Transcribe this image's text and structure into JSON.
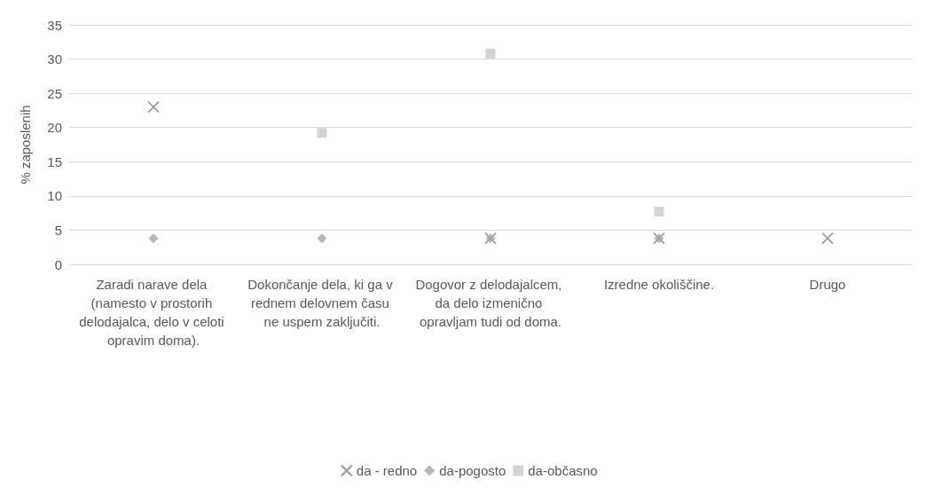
{
  "chart_data": {
    "type": "scatter",
    "ylabel": "% zaposlenih",
    "categories": [
      "Zaradi narave dela (namesto v prostorih delodajalca, delo v celoti opravim doma).",
      "Dokončanje dela, ki ga v rednem delovnem času ne uspem zaključiti.",
      "Dogovor z delodajalcem, da delo izmenično opravljam tudi od doma.",
      "Izredne okoliščine.",
      "Drugo"
    ],
    "series": [
      {
        "name": "da - redno",
        "color": "#7f7f7f",
        "marker": "cross",
        "values": [
          23,
          null,
          3.8,
          3.8,
          3.8
        ]
      },
      {
        "name": "da-pogosto",
        "color": "#a5a5a5",
        "marker": "diamond",
        "values": [
          3.8,
          3.8,
          3.8,
          3.8,
          null
        ]
      },
      {
        "name": "da-občasno",
        "color": "#c9c9c9",
        "marker": "square",
        "values": [
          null,
          19.2,
          30.8,
          7.7,
          null
        ]
      }
    ],
    "ylim": [
      0,
      35
    ],
    "yticks": [
      0,
      5,
      10,
      15,
      20,
      25,
      30,
      35
    ],
    "grid": "y",
    "legend": "bottom"
  }
}
